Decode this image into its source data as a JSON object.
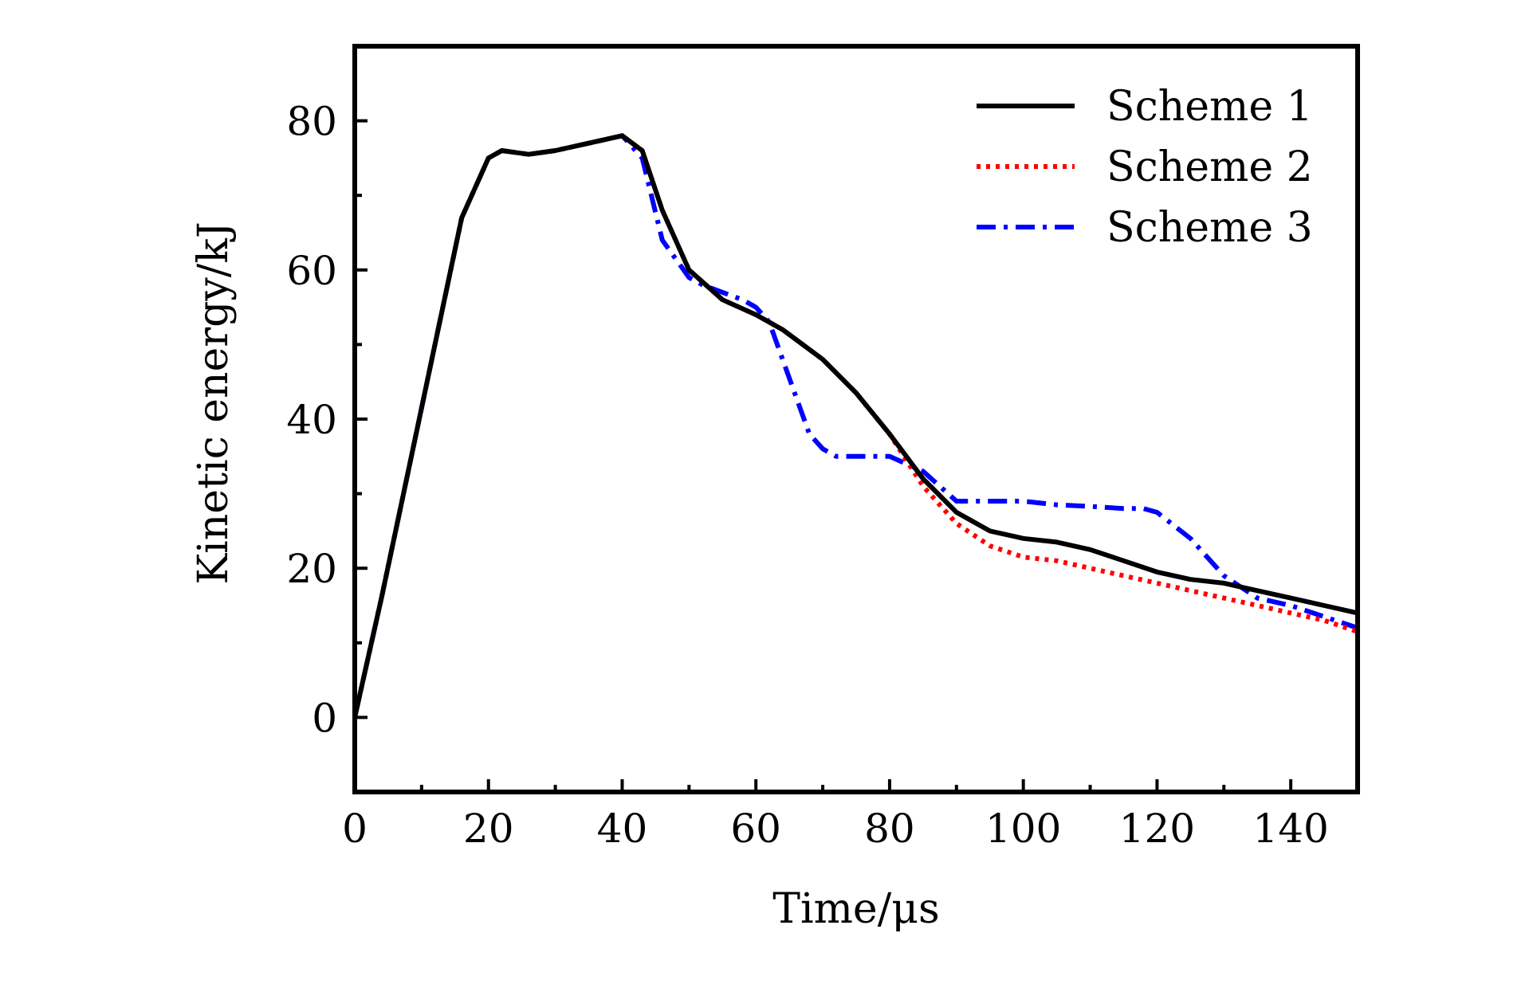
{
  "chart_data": {
    "type": "line",
    "title": "",
    "xlabel": "Time/μs",
    "ylabel": "Kinetic energy/kJ",
    "xlim": [
      0,
      150
    ],
    "ylim": [
      -10,
      90
    ],
    "xticks": [
      0,
      20,
      40,
      60,
      80,
      100,
      120,
      140
    ],
    "xtick_labels": [
      "0",
      "20",
      "40",
      "60",
      "80",
      "100",
      "120",
      "140"
    ],
    "yticks": [
      0,
      20,
      40,
      60,
      80
    ],
    "ytick_labels": [
      "0",
      "20",
      "40",
      "60",
      "80"
    ],
    "grid": false,
    "legend_position": "top-right",
    "series": [
      {
        "name": "Scheme 1",
        "color": "#000000",
        "style": "solid",
        "x": [
          0,
          4,
          8,
          12,
          16,
          20,
          22,
          26,
          30,
          34,
          38,
          40,
          43,
          46,
          50,
          55,
          60,
          64,
          70,
          75,
          80,
          85,
          90,
          95,
          100,
          105,
          110,
          115,
          120,
          125,
          130,
          135,
          140,
          145,
          150
        ],
        "y": [
          0,
          16,
          33,
          50,
          67,
          75,
          76,
          75.5,
          76,
          76.8,
          77.6,
          78,
          76,
          68,
          60,
          56,
          54,
          52,
          48,
          43.5,
          38,
          32,
          27.5,
          25,
          24,
          23.5,
          22.5,
          21,
          19.5,
          18.5,
          18,
          17,
          16,
          15,
          14
        ]
      },
      {
        "name": "Scheme 2",
        "color": "#ff0000",
        "style": "dotted",
        "x": [
          0,
          4,
          8,
          12,
          16,
          20,
          22,
          26,
          30,
          34,
          38,
          40,
          43,
          46,
          50,
          55,
          60,
          64,
          70,
          75,
          80,
          85,
          90,
          95,
          100,
          105,
          110,
          115,
          120,
          125,
          130,
          135,
          140,
          145,
          150
        ],
        "y": [
          0,
          16,
          33,
          50,
          67,
          75,
          76,
          75.5,
          76,
          76.8,
          77.6,
          78,
          76,
          68,
          60,
          56,
          54,
          52,
          48,
          43.5,
          38,
          31,
          26,
          23,
          21.5,
          21,
          20,
          19,
          18,
          17,
          16,
          15,
          14,
          13,
          11.5
        ]
      },
      {
        "name": "Scheme 3",
        "color": "#0000ff",
        "style": "dashdot",
        "x": [
          0,
          4,
          8,
          12,
          16,
          20,
          22,
          26,
          30,
          34,
          38,
          40,
          43,
          46,
          50,
          52,
          55,
          58,
          60,
          62,
          64,
          66,
          68,
          70,
          72,
          76,
          80,
          85,
          90,
          95,
          100,
          105,
          110,
          115,
          118,
          120,
          125,
          130,
          135,
          140,
          145,
          150
        ],
        "y": [
          0,
          16,
          33,
          50,
          67,
          75,
          76,
          75.5,
          76,
          76.8,
          77.6,
          78,
          75,
          64,
          59,
          58,
          57,
          56,
          55,
          53,
          48,
          43,
          38,
          36,
          35,
          35,
          35,
          33,
          29,
          29,
          29,
          28.5,
          28.3,
          28,
          28,
          27.5,
          24,
          19,
          16,
          15,
          13.5,
          12
        ]
      }
    ]
  }
}
